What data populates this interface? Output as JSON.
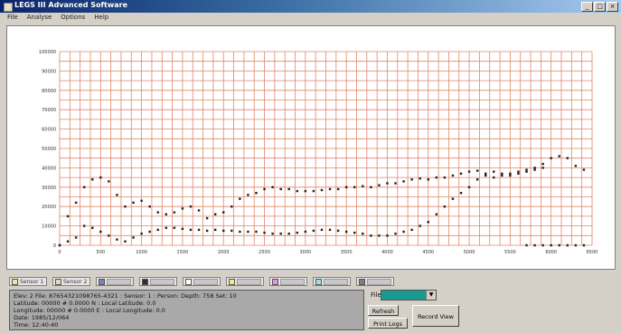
{
  "window": {
    "title": "LEGS III Advanced Software"
  },
  "menu": [
    "File",
    "Analyse",
    "Options",
    "Help"
  ],
  "chart_data": {
    "type": "scatter",
    "y_ticks": [
      "0",
      "10000",
      "20000",
      "30000",
      "40000",
      "50000",
      "60000",
      "70000",
      "80000",
      "90000",
      "100000"
    ],
    "x_ticks": [
      "0",
      "500",
      "1000",
      "1500",
      "2000",
      "2500",
      "3000",
      "3500",
      "4000",
      "4500",
      "5000",
      "5500",
      "6000",
      "6500"
    ],
    "xlabel": "",
    "ylabel": "",
    "xlim": [
      0,
      6500
    ],
    "ylim": [
      0,
      100000
    ],
    "grid": true,
    "series": [
      {
        "color": "#222222",
        "x": [
          0,
          100,
          200,
          300,
          400,
          500,
          600,
          700,
          800,
          900,
          1000,
          1100,
          1200,
          1300,
          1400,
          1500,
          1600,
          1700,
          1800,
          1900,
          2000,
          2100,
          2200,
          2300,
          2400,
          2500,
          2600,
          2700,
          2800,
          2900,
          3000,
          3100,
          3200,
          3300,
          3400,
          3500,
          3600,
          3700,
          3800,
          3900,
          4000,
          4100,
          4200,
          4300,
          4400,
          4500,
          4600,
          4700,
          4800,
          4900,
          5000,
          5100,
          5200,
          5300,
          5400,
          5500,
          5600,
          5700,
          5800,
          5900,
          6000,
          6100,
          6200,
          6300,
          6400
        ],
        "y": [
          0,
          15000,
          22000,
          30000,
          34000,
          35000,
          33000,
          26000,
          20000,
          22000,
          23000,
          20000,
          17000,
          16000,
          17000,
          19000,
          20000,
          18000,
          14000,
          16000,
          17000,
          20000,
          24000,
          26000,
          27000,
          29000,
          30000,
          29000,
          29000,
          28000,
          28000,
          28000,
          28500,
          29000,
          29000,
          30000,
          30000,
          30500,
          30000,
          31000,
          32000,
          32000,
          33000,
          34000,
          34500,
          34000,
          35000,
          35000,
          36000,
          37000,
          38000,
          38500,
          36000,
          35000,
          36000,
          37000,
          38000,
          39000,
          40000,
          42000,
          45000,
          46000,
          45000,
          41000,
          39000
        ]
      },
      {
        "color": "#222222",
        "x": [
          0,
          100,
          200,
          300,
          400,
          500,
          600,
          700,
          800,
          900,
          1000,
          1100,
          1200,
          1300,
          1400,
          1500,
          1600,
          1700,
          1800,
          1900,
          2000,
          2100,
          2200,
          2300,
          2400,
          2500,
          2600,
          2700,
          2800,
          2900,
          3000,
          3100,
          3200,
          3300,
          3400,
          3500,
          3600,
          3700,
          3800,
          3900,
          4000,
          4100,
          4200,
          4300,
          4400,
          4500,
          4600,
          4700,
          4800,
          4900,
          5000,
          5100,
          5200,
          5300,
          5400,
          5500,
          5600,
          5700,
          5800,
          5900
        ],
        "y": [
          0,
          2000,
          4000,
          10000,
          9000,
          7000,
          5000,
          3000,
          2000,
          4000,
          6000,
          7000,
          8000,
          9000,
          9000,
          8500,
          8000,
          8000,
          7500,
          8000,
          7500,
          7500,
          7000,
          7000,
          7000,
          6500,
          6000,
          6000,
          6000,
          6500,
          7000,
          7500,
          8000,
          8000,
          7500,
          7000,
          6500,
          6000,
          5000,
          5000,
          5000,
          6000,
          7000,
          8000,
          10000,
          12000,
          16000,
          20000,
          24000,
          27000,
          30000,
          34000,
          37000,
          38000,
          37000,
          36000,
          37000,
          38000,
          39000,
          40000
        ]
      },
      {
        "color": "#222222",
        "x": [
          5700,
          5800,
          5900,
          6000,
          6100,
          6200,
          6300,
          6400
        ],
        "y": [
          0,
          0,
          0,
          0,
          0,
          0,
          0,
          0
        ]
      }
    ]
  },
  "legend_tabs": [
    {
      "label": "Sensor 1",
      "color": "#f4e0a0"
    },
    {
      "label": "Sensor 2",
      "color": "#f8d0b0"
    },
    {
      "label": "",
      "color": "#8080c0"
    },
    {
      "label": "",
      "color": "#303030"
    },
    {
      "label": "",
      "color": "#ffffff"
    },
    {
      "label": "",
      "color": "#f0e890"
    },
    {
      "label": "",
      "color": "#e890e8"
    },
    {
      "label": "",
      "color": "#a0e0e0"
    },
    {
      "label": "",
      "color": "#808080"
    }
  ],
  "info": [
    "Elev: 2   File: 87654321098765-4321  : Sensor: 1  : Person: Depth: 758  Set: 10",
    "Latitude: 00000  # 0.0000 N : Local Latitude: 0.0",
    "Longitude: 00000  # 0.0000 E : Local Longitude: 0.0",
    "Date: 1985/12/064",
    "Time: 12:40:40"
  ],
  "file_label": "File:",
  "buttons": {
    "refresh": "Refresh",
    "print": "Print Logs",
    "record": "Record View"
  }
}
